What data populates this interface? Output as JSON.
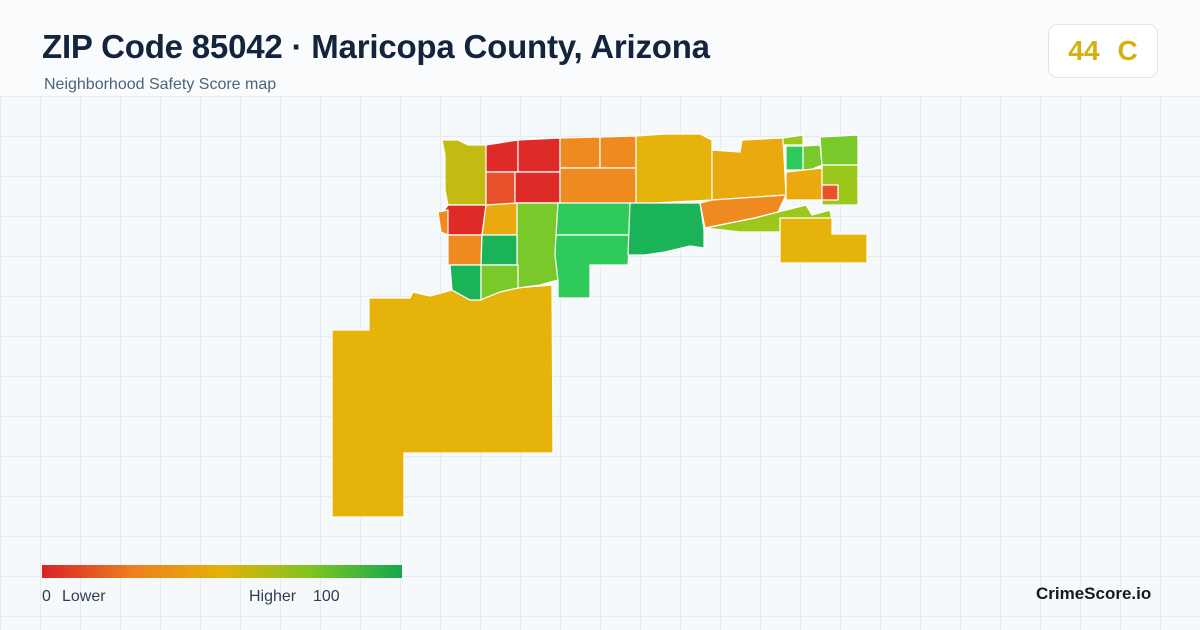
{
  "header": {
    "title": "ZIP Code 85042 · Maricopa County, Arizona",
    "subtitle": "Neighborhood Safety Score map"
  },
  "score": {
    "value": "44",
    "grade": "C",
    "color": "#d7b00f"
  },
  "legend": {
    "min": "0",
    "min_label": "Lower",
    "max_label": "Higher",
    "max": "100",
    "colors": [
      "#d9222a",
      "#ec7f1f",
      "#e5b108",
      "#7dc423",
      "#16a84c"
    ]
  },
  "brand": "CrimeScore.io",
  "palette": {
    "red": "#de2b27",
    "red_orange": "#e8512a",
    "orange": "#ee8a1f",
    "amber": "#e9a90f",
    "mustard": "#e6b30b",
    "olive": "#c3bb12",
    "yellow_green": "#9cc81c",
    "light_green": "#79c92a",
    "green": "#2fcb5a",
    "dark_green": "#1bb357"
  }
}
